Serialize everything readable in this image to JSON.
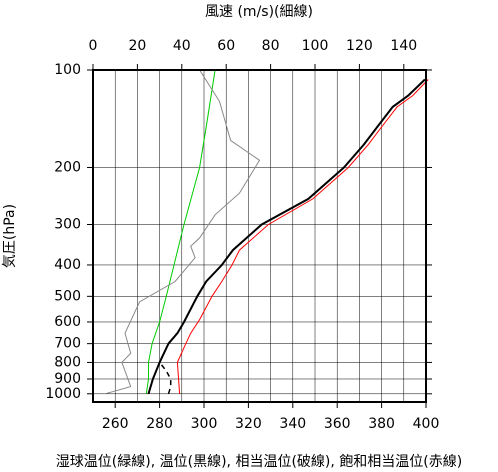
{
  "chart_data": {
    "type": "profile",
    "x2_label": "風速 (m/s)(細線)",
    "y_label": "気圧(hPa)",
    "x_label": "湿球温位(緑線), 温位(黒線), 相当温位(破線), 飽和相当温位(赤線)",
    "xlim": [
      250,
      400
    ],
    "xticks": [
      260,
      280,
      300,
      320,
      340,
      360,
      380,
      400
    ],
    "x2lim": [
      0,
      150
    ],
    "x2ticks": [
      0,
      20,
      40,
      60,
      80,
      100,
      120,
      140
    ],
    "ylim": [
      100,
      1060
    ],
    "yticks": [
      100,
      200,
      300,
      400,
      500,
      600,
      700,
      800,
      900,
      1000
    ],
    "log_y": true,
    "y_reversed": true,
    "grid": true,
    "series": [
      {
        "color": "#00cc00",
        "width": 1,
        "dashed": false,
        "x": [
          274,
          275,
          275,
          276.6,
          280,
          283,
          286.5,
          291,
          298,
          301,
          305
        ],
        "y": [
          1000,
          900,
          800,
          700,
          600,
          500,
          400,
          300,
          200,
          150,
          100
        ]
      },
      {
        "color": "#888888",
        "width": 1,
        "dashed": false,
        "axis": "x2",
        "x": [
          5.4,
          17,
          13,
          17,
          14.4,
          21,
          37,
          46,
          44,
          48,
          55,
          66,
          75,
          62,
          57,
          48
        ],
        "y": [
          1000,
          950,
          800,
          750,
          650,
          520,
          450,
          380,
          350,
          330,
          280,
          240,
          190,
          165,
          125,
          100
        ]
      },
      {
        "color": "#ff0000",
        "width": 1,
        "dashed": false,
        "x": [
          289,
          288,
          291,
          294,
          298,
          303.6,
          308,
          312.6,
          316,
          329,
          349,
          365,
          374,
          380,
          387,
          394,
          401
        ],
        "y": [
          1000,
          800,
          720,
          650,
          590,
          500,
          450,
          400,
          360,
          300,
          250,
          200,
          170,
          150,
          130,
          120,
          107
        ]
      },
      {
        "color": "#000000",
        "width": 2,
        "dashed": false,
        "x": [
          275,
          277,
          280,
          284,
          288,
          291,
          297,
          301,
          308,
          313,
          326,
          347,
          363,
          372,
          378,
          385,
          392,
          399.5
        ],
        "y": [
          1000,
          900,
          800,
          700,
          650,
          600,
          500,
          450,
          400,
          360,
          300,
          250,
          200,
          170,
          150,
          130,
          120,
          107
        ]
      },
      {
        "color": "#000000",
        "width": 1.5,
        "dashed": true,
        "x": [
          284,
          285,
          285,
          283,
          280
        ],
        "y": [
          1000,
          950,
          900,
          850,
          800
        ]
      }
    ]
  }
}
